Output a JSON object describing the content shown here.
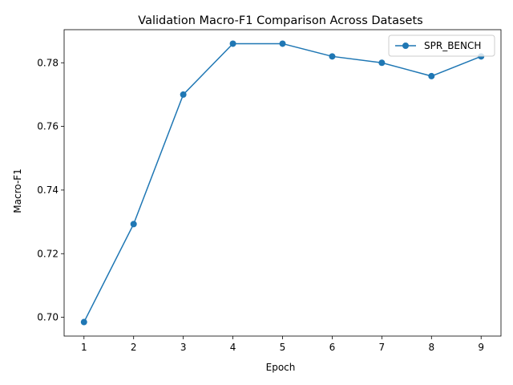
{
  "chart_data": {
    "type": "line",
    "title": "Validation Macro-F1 Comparison Across Datasets",
    "xlabel": "Epoch",
    "ylabel": "Macro-F1",
    "x": [
      1,
      2,
      3,
      4,
      5,
      6,
      7,
      8,
      9
    ],
    "xticks": [
      1,
      2,
      3,
      4,
      5,
      6,
      7,
      8,
      9
    ],
    "yticks": [
      0.7,
      0.72,
      0.74,
      0.76,
      0.78
    ],
    "ytick_labels": [
      "0.70",
      "0.72",
      "0.74",
      "0.76",
      "0.78"
    ],
    "xlim": [
      0.6,
      9.4
    ],
    "ylim": [
      0.6941,
      0.7904
    ],
    "grid": false,
    "legend_position": "top-right",
    "series": [
      {
        "name": "SPR_BENCH",
        "color": "#1f77b4",
        "marker": "circle",
        "values": [
          0.6985,
          0.7293,
          0.77,
          0.786,
          0.786,
          0.782,
          0.78,
          0.7758,
          0.782
        ]
      }
    ]
  }
}
